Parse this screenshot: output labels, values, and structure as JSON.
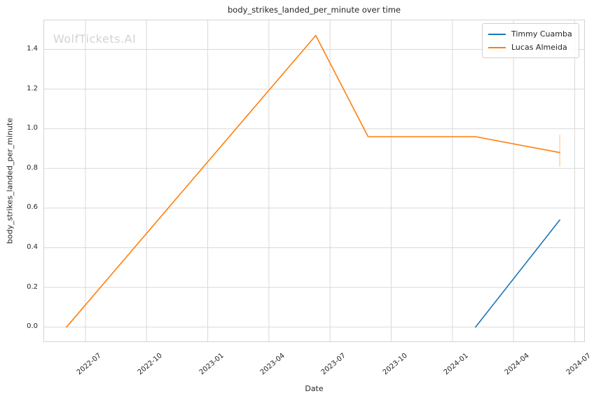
{
  "chart_data": {
    "type": "line",
    "title": "body_strikes_landed_per_minute over time",
    "xlabel": "Date",
    "ylabel": "body_strikes_landed_per_minute",
    "watermark": "WolfTickets.AI",
    "grid": true,
    "legend_position": "upper right",
    "x_ticks": [
      "2022-07",
      "2022-10",
      "2023-01",
      "2023-04",
      "2023-07",
      "2023-10",
      "2024-01",
      "2024-04",
      "2024-07"
    ],
    "y_ticks": [
      0.0,
      0.2,
      0.4,
      0.6,
      0.8,
      1.0,
      1.2,
      1.4
    ],
    "xlim_months": [
      3.94,
      30.5
    ],
    "ylim": [
      -0.075,
      1.55
    ],
    "colors": {
      "grid": "#d9d9d9",
      "spine": "#d4d4d4",
      "text": "#262626",
      "watermark": "#d3d3d3"
    },
    "series": [
      {
        "name": "Timmy Cuamba",
        "color": "#1f77b4",
        "points": [
          {
            "date": "2024-02-05",
            "value": 0.0
          },
          {
            "date": "2024-06-09",
            "value": 0.54
          }
        ]
      },
      {
        "name": "Lucas Almeida",
        "color": "#ff7f0e",
        "points": [
          {
            "date": "2022-06-03",
            "value": 0.0
          },
          {
            "date": "2023-06-10",
            "value": 1.47
          },
          {
            "date": "2023-08-27",
            "value": 0.96
          },
          {
            "date": "2024-02-05",
            "value": 0.96
          },
          {
            "date": "2024-06-09",
            "value": 0.88
          }
        ],
        "error_bars": [
          {
            "date": "2024-06-09",
            "low": 0.81,
            "high": 0.97
          }
        ]
      }
    ]
  }
}
